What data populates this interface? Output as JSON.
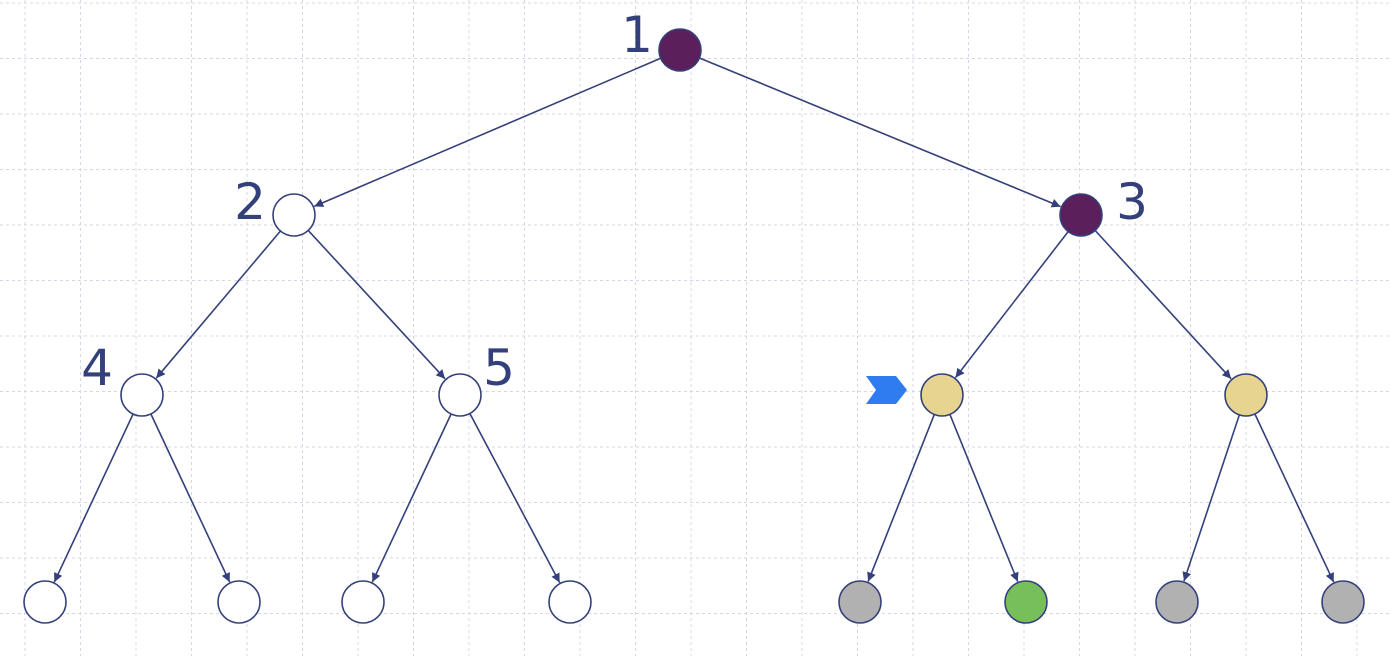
{
  "colors": {
    "edge": "#34407a",
    "node_stroke": "#34407a",
    "label": "#34407a",
    "grid": "#d4d8e6",
    "visited": "#5b1f5c",
    "frontier": "#e8d491",
    "leaf_unexplored": "#b1b1b1",
    "goal": "#77bf5a",
    "empty": "#ffffff",
    "marker": "#2f7bf0"
  },
  "nodes": [
    {
      "id": "n1",
      "label": "1",
      "state": "visited"
    },
    {
      "id": "n2",
      "label": "2",
      "state": "empty"
    },
    {
      "id": "n3",
      "label": "3",
      "state": "visited"
    },
    {
      "id": "n4",
      "label": "4",
      "state": "empty"
    },
    {
      "id": "n5",
      "label": "5",
      "state": "empty"
    },
    {
      "id": "n6",
      "label": "",
      "state": "frontier"
    },
    {
      "id": "n7",
      "label": "",
      "state": "frontier"
    },
    {
      "id": "n8",
      "label": "",
      "state": "empty"
    },
    {
      "id": "n9",
      "label": "",
      "state": "empty"
    },
    {
      "id": "n10",
      "label": "",
      "state": "empty"
    },
    {
      "id": "n11",
      "label": "",
      "state": "empty"
    },
    {
      "id": "n12",
      "label": "",
      "state": "leaf_unexplored"
    },
    {
      "id": "n13",
      "label": "",
      "state": "goal"
    },
    {
      "id": "n14",
      "label": "",
      "state": "leaf_unexplored"
    },
    {
      "id": "n15",
      "label": "",
      "state": "leaf_unexplored"
    }
  ],
  "edges": [
    [
      "n1",
      "n2"
    ],
    [
      "n1",
      "n3"
    ],
    [
      "n2",
      "n4"
    ],
    [
      "n2",
      "n5"
    ],
    [
      "n3",
      "n6"
    ],
    [
      "n3",
      "n7"
    ],
    [
      "n4",
      "n8"
    ],
    [
      "n4",
      "n9"
    ],
    [
      "n5",
      "n10"
    ],
    [
      "n5",
      "n11"
    ],
    [
      "n6",
      "n12"
    ],
    [
      "n6",
      "n13"
    ],
    [
      "n7",
      "n14"
    ],
    [
      "n7",
      "n15"
    ]
  ],
  "current_node": "n6"
}
